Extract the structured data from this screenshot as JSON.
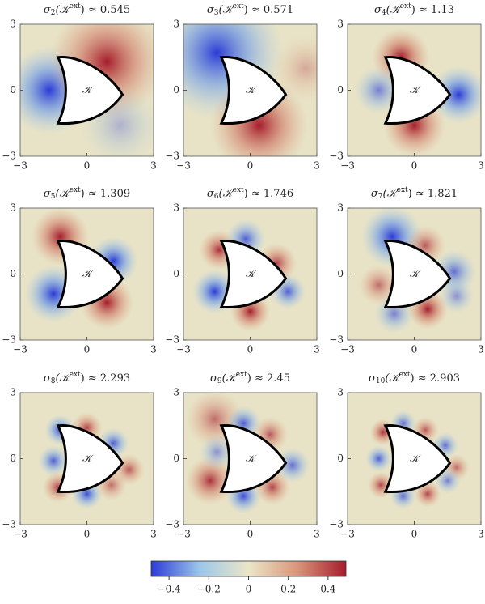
{
  "chart_data": [
    {
      "type": "heatmap",
      "symbol": "σ",
      "subscript": "2",
      "argument": "(𝒦",
      "superscript": "ext",
      "relation": ") ≈ ",
      "value": 0.545,
      "label": "𝒦",
      "xlim": [
        -3,
        3
      ],
      "xticks": [
        {
          "value": -3,
          "label": "−3"
        },
        0,
        3
      ],
      "ylim": [
        -3,
        3
      ],
      "yticks": [
        {
          "value": -3,
          "label": "−3"
        },
        0,
        3
      ]
    },
    {
      "type": "heatmap",
      "symbol": "σ",
      "subscript": "3",
      "argument": "(𝒦",
      "superscript": "ext",
      "relation": ") ≈ ",
      "value": 0.571,
      "label": "𝒦",
      "xlim": [
        -3,
        3
      ],
      "xticks": [
        {
          "value": -3,
          "label": "−3"
        },
        0,
        3
      ],
      "ylim": [
        -3,
        3
      ],
      "yticks": [
        {
          "value": -3,
          "label": "−3"
        },
        0,
        3
      ]
    },
    {
      "type": "heatmap",
      "symbol": "σ",
      "subscript": "4",
      "argument": "(𝒦",
      "superscript": "ext",
      "relation": ") ≈ ",
      "value": 1.13,
      "label": "𝒦",
      "xlim": [
        -3,
        3
      ],
      "xticks": [
        {
          "value": -3,
          "label": "−3"
        },
        0,
        3
      ],
      "ylim": [
        -3,
        3
      ],
      "yticks": [
        {
          "value": -3,
          "label": "−3"
        },
        0,
        3
      ]
    },
    {
      "type": "heatmap",
      "symbol": "σ",
      "subscript": "5",
      "argument": "(𝒦",
      "superscript": "ext",
      "relation": ") ≈ ",
      "value": 1.309,
      "label": "𝒦",
      "xlim": [
        -3,
        3
      ],
      "xticks": [
        {
          "value": -3,
          "label": "−3"
        },
        0,
        3
      ],
      "ylim": [
        -3,
        3
      ],
      "yticks": [
        {
          "value": -3,
          "label": "−3"
        },
        0,
        3
      ]
    },
    {
      "type": "heatmap",
      "symbol": "σ",
      "subscript": "6",
      "argument": "(𝒦",
      "superscript": "ext",
      "relation": ") ≈ ",
      "value": 1.746,
      "label": "𝒦",
      "xlim": [
        -3,
        3
      ],
      "xticks": [
        {
          "value": -3,
          "label": "−3"
        },
        0,
        3
      ],
      "ylim": [
        -3,
        3
      ],
      "yticks": [
        {
          "value": -3,
          "label": "−3"
        },
        0,
        3
      ]
    },
    {
      "type": "heatmap",
      "symbol": "σ",
      "subscript": "7",
      "argument": "(𝒦",
      "superscript": "ext",
      "relation": ") ≈ ",
      "value": 1.821,
      "label": "𝒦",
      "xlim": [
        -3,
        3
      ],
      "xticks": [
        {
          "value": -3,
          "label": "−3"
        },
        0,
        3
      ],
      "ylim": [
        -3,
        3
      ],
      "yticks": [
        {
          "value": -3,
          "label": "−3"
        },
        0,
        3
      ]
    },
    {
      "type": "heatmap",
      "symbol": "σ",
      "subscript": "8",
      "argument": "(𝒦",
      "superscript": "ext",
      "relation": ") ≈ ",
      "value": 2.293,
      "label": "𝒦",
      "xlim": [
        -3,
        3
      ],
      "xticks": [
        {
          "value": -3,
          "label": "−3"
        },
        0,
        3
      ],
      "ylim": [
        -3,
        3
      ],
      "yticks": [
        {
          "value": -3,
          "label": "−3"
        },
        0,
        3
      ]
    },
    {
      "type": "heatmap",
      "symbol": "σ",
      "subscript": "9",
      "argument": "(𝒦",
      "superscript": "ext",
      "relation": ") ≈ ",
      "value": 2.45,
      "label": "𝒦",
      "xlim": [
        -3,
        3
      ],
      "xticks": [
        {
          "value": -3,
          "label": "−3"
        },
        0,
        3
      ],
      "ylim": [
        -3,
        3
      ],
      "yticks": [
        {
          "value": -3,
          "label": "−3"
        },
        0,
        3
      ]
    },
    {
      "type": "heatmap",
      "symbol": "σ",
      "subscript": "10",
      "argument": "(𝒦",
      "superscript": "ext",
      "relation": ") ≈ ",
      "value": 2.903,
      "label": "𝒦",
      "xlim": [
        -3,
        3
      ],
      "xticks": [
        {
          "value": -3,
          "label": "−3"
        },
        0,
        3
      ],
      "ylim": [
        -3,
        3
      ],
      "yticks": [
        {
          "value": -3,
          "label": "−3"
        },
        0,
        3
      ]
    },
    {
      "type": "colorbar",
      "lim": [
        -0.49,
        0.49
      ],
      "ticks": [
        {
          "value": -0.4,
          "label": "−0.4"
        },
        {
          "value": -0.2,
          "label": "−0.2"
        },
        0,
        0.2,
        0.4
      ],
      "colors": [
        "#2b3bd6",
        "#9cc7ea",
        "#ece6c8",
        "#d9967a",
        "#a51c2c"
      ]
    }
  ]
}
